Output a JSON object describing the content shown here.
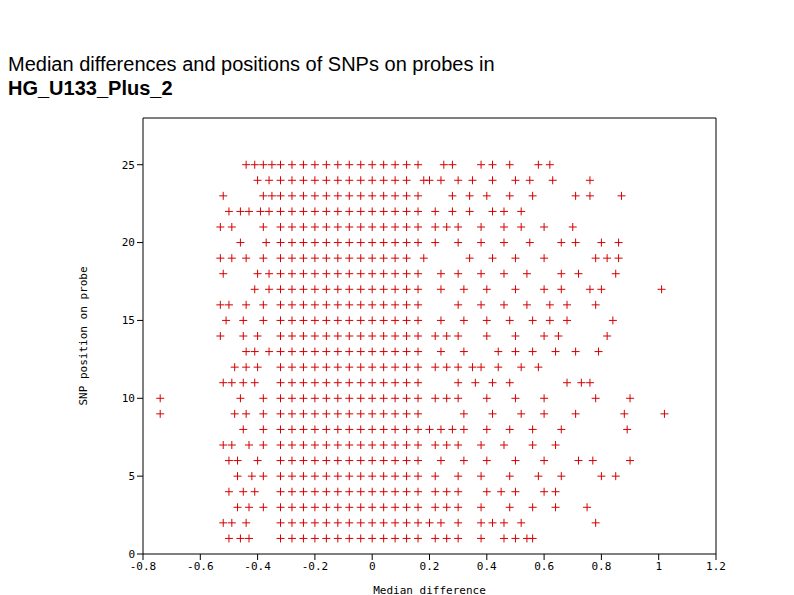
{
  "chart_data": {
    "type": "scatter",
    "title": "Median differences and positions of SNPs on probes in",
    "subtitle": "HG_U133_Plus_2",
    "x_label": "Median difference",
    "y_label": "SNP position on probe",
    "color": "#d40000",
    "marker": "plus",
    "xlim": [
      -0.8,
      1.2
    ],
    "xticks": [
      -0.8,
      -0.6,
      -0.4,
      -0.2,
      0,
      0.2,
      0.4,
      0.6,
      0.8,
      1,
      1.2
    ],
    "ylim": [
      0,
      28
    ],
    "yticks": [
      0,
      5,
      10,
      15,
      20,
      25
    ],
    "x": [
      -0.32,
      -0.28,
      -0.24,
      -0.2,
      -0.16,
      -0.12,
      -0.08,
      -0.04,
      0,
      0.04,
      0.08,
      0.12,
      -0.44,
      -0.41,
      -0.38,
      -0.35,
      0.16,
      0.25,
      0.28,
      0.38,
      0.42,
      0.48,
      0.58,
      0.62,
      -0.32,
      -0.28,
      -0.24,
      -0.2,
      -0.16,
      -0.12,
      -0.08,
      -0.04,
      0,
      0.04,
      0.08,
      0.12,
      -0.4,
      -0.36,
      0.18,
      0.2,
      0.24,
      0.3,
      0.35,
      0.42,
      0.5,
      0.55,
      0.63,
      0.76,
      -0.32,
      -0.28,
      -0.24,
      -0.2,
      -0.16,
      -0.12,
      -0.08,
      -0.04,
      0,
      0.04,
      0.08,
      0.12,
      -0.52,
      -0.38,
      -0.35,
      0.16,
      0.28,
      0.34,
      0.4,
      0.48,
      0.56,
      0.71,
      0.76,
      0.87,
      -0.32,
      -0.28,
      -0.24,
      -0.2,
      -0.16,
      -0.12,
      -0.08,
      -0.04,
      0,
      0.04,
      0.08,
      0.12,
      -0.5,
      -0.46,
      -0.43,
      -0.39,
      -0.36,
      0.16,
      0.22,
      0.28,
      0.34,
      0.42,
      0.46,
      0.52,
      -0.32,
      -0.28,
      -0.24,
      -0.2,
      -0.16,
      -0.12,
      -0.08,
      -0.04,
      0,
      0.04,
      0.08,
      0.12,
      -0.53,
      -0.49,
      -0.38,
      0.16,
      0.22,
      0.26,
      0.3,
      0.38,
      0.46,
      0.52,
      0.6,
      0.7,
      -0.32,
      -0.28,
      -0.24,
      -0.2,
      -0.16,
      -0.12,
      -0.08,
      -0.04,
      0,
      0.04,
      0.08,
      0.12,
      -0.46,
      -0.37,
      0.16,
      0.22,
      0.3,
      0.38,
      0.46,
      0.55,
      0.66,
      0.71,
      0.8,
      0.86,
      -0.32,
      -0.28,
      -0.24,
      -0.2,
      -0.16,
      -0.12,
      -0.08,
      -0.04,
      0,
      0.04,
      0.08,
      0.12,
      -0.53,
      -0.49,
      -0.44,
      -0.38,
      0.18,
      0.34,
      0.42,
      0.5,
      0.6,
      0.78,
      0.82,
      0.86,
      -0.32,
      -0.28,
      -0.24,
      -0.2,
      -0.16,
      -0.12,
      -0.08,
      -0.04,
      0,
      0.04,
      0.08,
      0.12,
      -0.52,
      -0.4,
      -0.36,
      0.16,
      0.24,
      0.3,
      0.38,
      0.46,
      0.54,
      0.66,
      0.72,
      0.85,
      -0.32,
      -0.28,
      -0.24,
      -0.2,
      -0.16,
      -0.12,
      -0.08,
      -0.04,
      0,
      0.04,
      0.08,
      0.12,
      -0.41,
      -0.36,
      0.16,
      0.24,
      0.32,
      0.4,
      0.5,
      0.6,
      0.66,
      0.76,
      0.8,
      1.01,
      -0.32,
      -0.28,
      -0.24,
      -0.2,
      -0.16,
      -0.12,
      -0.08,
      -0.04,
      0,
      0.04,
      0.08,
      0.12,
      -0.53,
      -0.5,
      -0.44,
      -0.38,
      0.16,
      0.3,
      0.38,
      0.46,
      0.54,
      0.62,
      0.68,
      0.78,
      -0.32,
      -0.28,
      -0.24,
      -0.2,
      -0.16,
      -0.12,
      -0.08,
      -0.04,
      0,
      0.04,
      0.08,
      0.12,
      -0.51,
      -0.45,
      -0.38,
      0.16,
      0.24,
      0.32,
      0.4,
      0.48,
      0.56,
      0.62,
      0.68,
      0.84,
      -0.32,
      -0.28,
      -0.24,
      -0.2,
      -0.16,
      -0.12,
      -0.08,
      -0.04,
      0,
      0.04,
      0.08,
      0.12,
      -0.53,
      -0.45,
      -0.4,
      0.16,
      0.22,
      0.26,
      0.3,
      0.4,
      0.5,
      0.6,
      0.65,
      0.82,
      -0.32,
      -0.28,
      -0.24,
      -0.2,
      -0.16,
      -0.12,
      -0.08,
      -0.04,
      0,
      0.04,
      0.08,
      0.12,
      -0.44,
      -0.41,
      -0.36,
      0.16,
      0.24,
      0.32,
      0.44,
      0.5,
      0.56,
      0.64,
      0.71,
      0.79,
      -0.32,
      -0.28,
      -0.24,
      -0.2,
      -0.16,
      -0.12,
      -0.08,
      -0.04,
      0,
      0.04,
      0.08,
      0.12,
      -0.48,
      -0.44,
      -0.4,
      0.16,
      0.22,
      0.26,
      0.3,
      0.35,
      0.38,
      0.44,
      0.52,
      0.58,
      -0.32,
      -0.28,
      -0.24,
      -0.2,
      -0.16,
      -0.12,
      -0.08,
      -0.04,
      0,
      0.04,
      0.08,
      0.12,
      -0.52,
      -0.49,
      -0.45,
      -0.41,
      0.16,
      0.3,
      0.36,
      0.42,
      0.48,
      0.68,
      0.73,
      0.76,
      -0.32,
      -0.28,
      -0.24,
      -0.2,
      -0.16,
      -0.12,
      -0.08,
      -0.04,
      0,
      0.04,
      0.08,
      0.12,
      -0.74,
      -0.46,
      -0.38,
      0.16,
      0.22,
      0.26,
      0.3,
      0.4,
      0.5,
      0.6,
      0.78,
      0.9,
      -0.32,
      -0.28,
      -0.24,
      -0.2,
      -0.16,
      -0.12,
      -0.08,
      -0.04,
      0,
      0.04,
      0.08,
      0.12,
      -0.74,
      -0.48,
      -0.44,
      -0.38,
      0.16,
      0.32,
      0.42,
      0.52,
      0.6,
      0.71,
      0.88,
      1.02,
      -0.32,
      -0.28,
      -0.24,
      -0.2,
      -0.16,
      -0.12,
      -0.08,
      -0.04,
      0,
      0.04,
      0.08,
      0.12,
      -0.45,
      -0.38,
      0.16,
      0.2,
      0.24,
      0.28,
      0.32,
      0.4,
      0.48,
      0.56,
      0.66,
      0.89,
      -0.32,
      -0.28,
      -0.24,
      -0.2,
      -0.16,
      -0.12,
      -0.08,
      -0.04,
      0,
      0.04,
      0.08,
      0.12,
      -0.52,
      -0.49,
      -0.43,
      -0.38,
      0.16,
      0.22,
      0.26,
      0.3,
      0.38,
      0.46,
      0.56,
      0.64,
      -0.32,
      -0.28,
      -0.24,
      -0.2,
      -0.16,
      -0.12,
      -0.08,
      -0.04,
      0,
      0.04,
      0.08,
      0.12,
      -0.5,
      -0.47,
      -0.4,
      0.16,
      0.24,
      0.32,
      0.4,
      0.5,
      0.6,
      0.72,
      0.77,
      0.9,
      -0.32,
      -0.28,
      -0.24,
      -0.2,
      -0.16,
      -0.12,
      -0.08,
      -0.04,
      0,
      0.04,
      0.08,
      0.12,
      -0.47,
      -0.42,
      -0.38,
      0.16,
      0.22,
      0.3,
      0.38,
      0.48,
      0.58,
      0.66,
      0.8,
      0.85,
      -0.32,
      -0.28,
      -0.24,
      -0.2,
      -0.16,
      -0.12,
      -0.08,
      -0.04,
      0,
      0.04,
      0.08,
      0.12,
      -0.5,
      -0.45,
      -0.41,
      0.16,
      0.22,
      0.26,
      0.3,
      0.4,
      0.45,
      0.5,
      0.6,
      0.64,
      -0.32,
      -0.28,
      -0.24,
      -0.2,
      -0.16,
      -0.12,
      -0.08,
      -0.04,
      0,
      0.04,
      0.08,
      0.12,
      -0.47,
      -0.43,
      -0.38,
      0.16,
      0.22,
      0.26,
      0.3,
      0.38,
      0.48,
      0.56,
      0.64,
      0.75,
      -0.32,
      -0.28,
      -0.24,
      -0.2,
      -0.16,
      -0.12,
      -0.08,
      -0.04,
      0,
      0.04,
      0.08,
      0.12,
      -0.52,
      -0.49,
      -0.44,
      0.16,
      0.2,
      0.24,
      0.3,
      0.38,
      0.42,
      0.46,
      0.52,
      0.78,
      -0.32,
      -0.28,
      -0.24,
      -0.2,
      -0.16,
      -0.12,
      -0.08,
      -0.04,
      0,
      0.04,
      0.08,
      0.12,
      -0.5,
      -0.46,
      -0.43,
      0.16,
      0.22,
      0.26,
      0.3,
      0.38,
      0.46,
      0.5,
      0.54,
      0.56
    ],
    "values": [
      25,
      25,
      25,
      25,
      25,
      25,
      25,
      25,
      25,
      25,
      25,
      25,
      25,
      25,
      25,
      25,
      25,
      25,
      25,
      25,
      25,
      25,
      25,
      25,
      24,
      24,
      24,
      24,
      24,
      24,
      24,
      24,
      24,
      24,
      24,
      24,
      24,
      24,
      24,
      24,
      24,
      24,
      24,
      24,
      24,
      24,
      24,
      24,
      23,
      23,
      23,
      23,
      23,
      23,
      23,
      23,
      23,
      23,
      23,
      23,
      23,
      23,
      23,
      23,
      23,
      23,
      23,
      23,
      23,
      23,
      23,
      23,
      22,
      22,
      22,
      22,
      22,
      22,
      22,
      22,
      22,
      22,
      22,
      22,
      22,
      22,
      22,
      22,
      22,
      22,
      22,
      22,
      22,
      22,
      22,
      22,
      21,
      21,
      21,
      21,
      21,
      21,
      21,
      21,
      21,
      21,
      21,
      21,
      21,
      21,
      21,
      21,
      21,
      21,
      21,
      21,
      21,
      21,
      21,
      21,
      20,
      20,
      20,
      20,
      20,
      20,
      20,
      20,
      20,
      20,
      20,
      20,
      20,
      20,
      20,
      20,
      20,
      20,
      20,
      20,
      20,
      20,
      20,
      20,
      19,
      19,
      19,
      19,
      19,
      19,
      19,
      19,
      19,
      19,
      19,
      19,
      19,
      19,
      19,
      19,
      19,
      19,
      19,
      19,
      19,
      19,
      19,
      19,
      18,
      18,
      18,
      18,
      18,
      18,
      18,
      18,
      18,
      18,
      18,
      18,
      18,
      18,
      18,
      18,
      18,
      18,
      18,
      18,
      18,
      18,
      18,
      18,
      17,
      17,
      17,
      17,
      17,
      17,
      17,
      17,
      17,
      17,
      17,
      17,
      17,
      17,
      17,
      17,
      17,
      17,
      17,
      17,
      17,
      17,
      17,
      17,
      16,
      16,
      16,
      16,
      16,
      16,
      16,
      16,
      16,
      16,
      16,
      16,
      16,
      16,
      16,
      16,
      16,
      16,
      16,
      16,
      16,
      16,
      16,
      16,
      15,
      15,
      15,
      15,
      15,
      15,
      15,
      15,
      15,
      15,
      15,
      15,
      15,
      15,
      15,
      15,
      15,
      15,
      15,
      15,
      15,
      15,
      15,
      15,
      14,
      14,
      14,
      14,
      14,
      14,
      14,
      14,
      14,
      14,
      14,
      14,
      14,
      14,
      14,
      14,
      14,
      14,
      14,
      14,
      14,
      14,
      14,
      14,
      13,
      13,
      13,
      13,
      13,
      13,
      13,
      13,
      13,
      13,
      13,
      13,
      13,
      13,
      13,
      13,
      13,
      13,
      13,
      13,
      13,
      13,
      13,
      13,
      12,
      12,
      12,
      12,
      12,
      12,
      12,
      12,
      12,
      12,
      12,
      12,
      12,
      12,
      12,
      12,
      12,
      12,
      12,
      12,
      12,
      12,
      12,
      12,
      11,
      11,
      11,
      11,
      11,
      11,
      11,
      11,
      11,
      11,
      11,
      11,
      11,
      11,
      11,
      11,
      11,
      11,
      11,
      11,
      11,
      11,
      11,
      11,
      10,
      10,
      10,
      10,
      10,
      10,
      10,
      10,
      10,
      10,
      10,
      10,
      10,
      10,
      10,
      10,
      10,
      10,
      10,
      10,
      10,
      10,
      10,
      10,
      9,
      9,
      9,
      9,
      9,
      9,
      9,
      9,
      9,
      9,
      9,
      9,
      9,
      9,
      9,
      9,
      9,
      9,
      9,
      9,
      9,
      9,
      9,
      9,
      8,
      8,
      8,
      8,
      8,
      8,
      8,
      8,
      8,
      8,
      8,
      8,
      8,
      8,
      8,
      8,
      8,
      8,
      8,
      8,
      8,
      8,
      8,
      8,
      7,
      7,
      7,
      7,
      7,
      7,
      7,
      7,
      7,
      7,
      7,
      7,
      7,
      7,
      7,
      7,
      7,
      7,
      7,
      7,
      7,
      7,
      7,
      7,
      6,
      6,
      6,
      6,
      6,
      6,
      6,
      6,
      6,
      6,
      6,
      6,
      6,
      6,
      6,
      6,
      6,
      6,
      6,
      6,
      6,
      6,
      6,
      6,
      5,
      5,
      5,
      5,
      5,
      5,
      5,
      5,
      5,
      5,
      5,
      5,
      5,
      5,
      5,
      5,
      5,
      5,
      5,
      5,
      5,
      5,
      5,
      5,
      4,
      4,
      4,
      4,
      4,
      4,
      4,
      4,
      4,
      4,
      4,
      4,
      4,
      4,
      4,
      4,
      4,
      4,
      4,
      4,
      4,
      4,
      4,
      4,
      3,
      3,
      3,
      3,
      3,
      3,
      3,
      3,
      3,
      3,
      3,
      3,
      3,
      3,
      3,
      3,
      3,
      3,
      3,
      3,
      3,
      3,
      3,
      3,
      2,
      2,
      2,
      2,
      2,
      2,
      2,
      2,
      2,
      2,
      2,
      2,
      2,
      2,
      2,
      2,
      2,
      2,
      2,
      2,
      2,
      2,
      2,
      2,
      1,
      1,
      1,
      1,
      1,
      1,
      1,
      1,
      1,
      1,
      1,
      1,
      1,
      1,
      1,
      1,
      1,
      1,
      1,
      1,
      1,
      1,
      1,
      1
    ]
  }
}
